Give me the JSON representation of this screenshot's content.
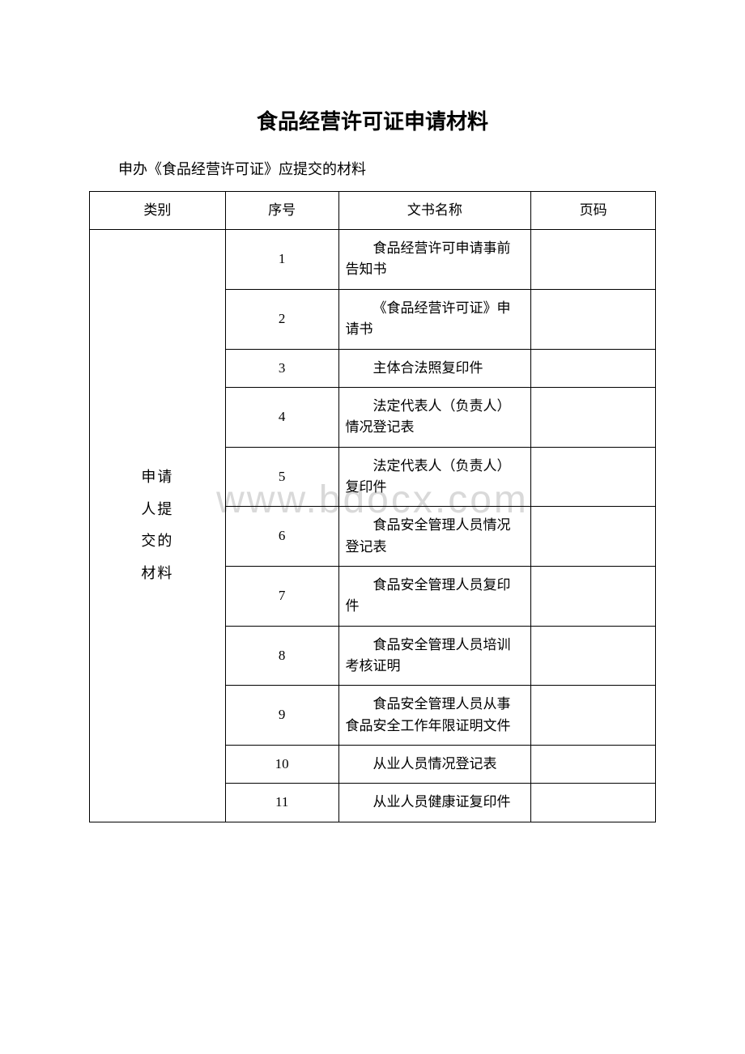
{
  "title": "食品经营许可证申请材料",
  "intro": "申办《食品经营许可证》应提交的材料",
  "watermark": "www.bdocx.com",
  "headers": {
    "col1": "类别",
    "col2": "序号",
    "col3": "文书名称",
    "col4": "页码"
  },
  "category_label_lines": [
    "申请",
    "人提",
    "交的",
    "材料"
  ],
  "rows": [
    {
      "seq": "1",
      "name": "食品经营许可申请事前告知书",
      "page": ""
    },
    {
      "seq": "2",
      "name": "《食品经营许可证》申请书",
      "page": ""
    },
    {
      "seq": "3",
      "name": "主体合法照复印件",
      "page": ""
    },
    {
      "seq": "4",
      "name": "法定代表人（负责人）情况登记表",
      "page": ""
    },
    {
      "seq": "5",
      "name": "法定代表人（负责人）复印件",
      "page": ""
    },
    {
      "seq": "6",
      "name": "食品安全管理人员情况登记表",
      "page": ""
    },
    {
      "seq": "7",
      "name": "食品安全管理人员复印件",
      "page": ""
    },
    {
      "seq": "8",
      "name": "食品安全管理人员培训考核证明",
      "page": ""
    },
    {
      "seq": "9",
      "name": "食品安全管理人员从事食品安全工作年限证明文件",
      "page": ""
    },
    {
      "seq": "10",
      "name": "从业人员情况登记表",
      "page": ""
    },
    {
      "seq": "11",
      "name": "从业人员健康证复印件",
      "page": ""
    }
  ],
  "colors": {
    "text": "#000000",
    "background": "#ffffff",
    "border": "#000000",
    "watermark": "#d9d9d9"
  },
  "fonts": {
    "title_family": "SimHei",
    "body_family": "SimSun",
    "title_size_pt": 20,
    "body_size_pt": 13
  }
}
